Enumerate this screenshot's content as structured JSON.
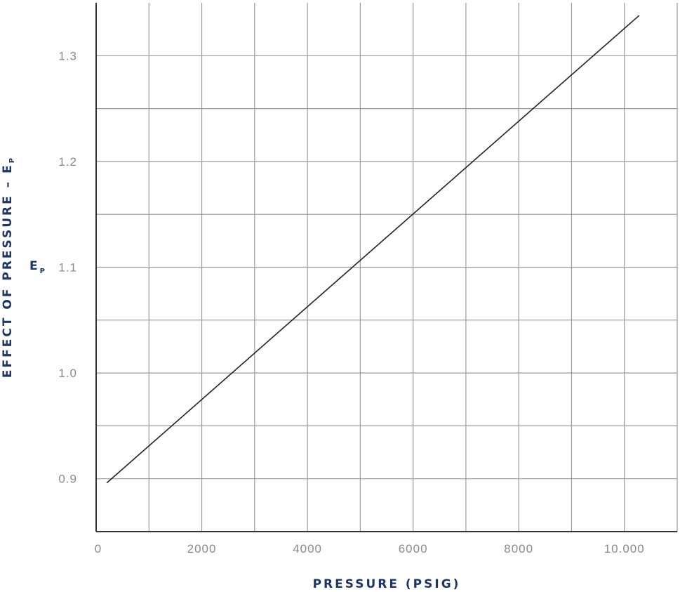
{
  "chart_data": {
    "type": "line",
    "title": "",
    "xlabel": "PRESSURE (PSIG)",
    "ylabel": "EFFECT OF PRESSURE – E",
    "ylabel_sub": "P",
    "inner_label": "E",
    "inner_label_sub": "P",
    "xlim": [
      0,
      11000
    ],
    "ylim": [
      0.85,
      1.35
    ],
    "x_ticks": [
      0,
      2000,
      4000,
      6000,
      8000,
      10000
    ],
    "x_tick_labels": [
      "0",
      "2000",
      "4000",
      "6000",
      "8000",
      "10.000"
    ],
    "y_ticks": [
      0.9,
      1.0,
      1.1,
      1.2,
      1.3
    ],
    "y_tick_labels": [
      "0.9",
      "1.0",
      "1.1",
      "1.2",
      "1.3"
    ],
    "grid": true,
    "x_grid_step": 1000,
    "y_grid_step": 0.05,
    "series": [
      {
        "x": [
          200,
          10280
        ],
        "y": [
          0.896,
          1.338
        ],
        "color": "#222222"
      }
    ],
    "colors": {
      "grid": "#9a9a9a",
      "axis": "#333333",
      "label": "#1f3563",
      "tick": "#8a8a8a"
    }
  }
}
